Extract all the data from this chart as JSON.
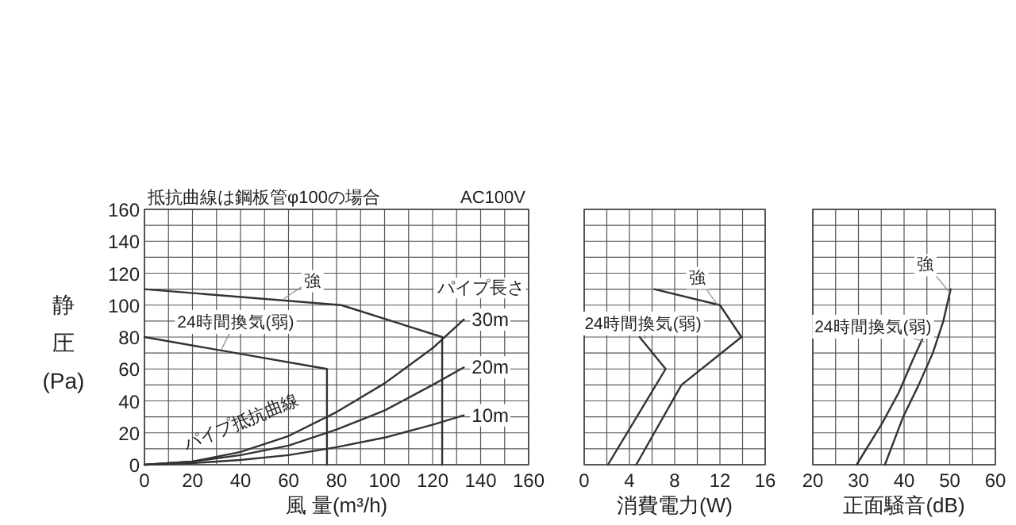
{
  "chart_data": [
    {
      "type": "line",
      "title": "抵抗曲線は鋼板管φ100の場合",
      "subtitle": "AC100V",
      "xlabel": "風 量(m³/h)",
      "ylabel": "静圧(Pa)",
      "legend_title": "パイプ長さ",
      "annotations": [
        "パイプ抵抗曲線"
      ],
      "grid": true,
      "xlim": [
        0,
        160
      ],
      "ylim": [
        0,
        160
      ],
      "xticks": [
        0,
        {
          "value": 10,
          "label": null
        },
        20,
        {
          "value": 30,
          "label": null
        },
        40,
        {
          "value": 50,
          "label": null
        },
        60,
        {
          "value": 70,
          "label": null
        },
        80,
        {
          "value": 90,
          "label": null
        },
        100,
        {
          "value": 110,
          "label": null
        },
        120,
        {
          "value": 130,
          "label": null
        },
        140,
        {
          "value": 150,
          "label": null
        },
        160
      ],
      "yticks": [
        0,
        {
          "value": 10,
          "label": null
        },
        20,
        {
          "value": 30,
          "label": null
        },
        40,
        {
          "value": 50,
          "label": null
        },
        60,
        {
          "value": 70,
          "label": null
        },
        80,
        {
          "value": 90,
          "label": null
        },
        100,
        {
          "value": 110,
          "label": null
        },
        120,
        {
          "value": 130,
          "label": null
        },
        140,
        {
          "value": 150,
          "label": null
        },
        160
      ],
      "series": [
        {
          "name": "強",
          "color": "#333333",
          "x": [
            0,
            82,
            124,
            124
          ],
          "values": [
            110,
            100,
            80,
            0
          ]
        },
        {
          "name": "24時間換気(弱)",
          "color": "#333333",
          "x": [
            0,
            76,
            76
          ],
          "values": [
            80,
            60,
            0
          ]
        },
        {
          "name": "30m",
          "color": "#333333",
          "x": [
            0,
            20,
            40,
            60,
            80,
            100,
            120,
            133
          ],
          "values": [
            0,
            2,
            8,
            18,
            33,
            51,
            73,
            91
          ]
        },
        {
          "name": "20m",
          "color": "#333333",
          "x": [
            0,
            20,
            40,
            60,
            80,
            100,
            120,
            133
          ],
          "values": [
            0,
            2,
            6,
            12,
            22,
            34,
            50,
            61
          ]
        },
        {
          "name": "10m",
          "color": "#333333",
          "x": [
            0,
            20,
            40,
            60,
            80,
            100,
            120,
            133
          ],
          "values": [
            0,
            1,
            3,
            6,
            11,
            17,
            25,
            31
          ]
        }
      ]
    },
    {
      "type": "line",
      "xlabel": "消費電力(W)",
      "grid": true,
      "tick_labels": "x",
      "xlim": [
        0,
        16
      ],
      "ylim": [
        0,
        160
      ],
      "xticks": [
        0,
        {
          "value": 2,
          "label": null
        },
        4,
        {
          "value": 6,
          "label": null
        },
        8,
        {
          "value": 10,
          "label": null
        },
        12,
        {
          "value": 14,
          "label": null
        },
        16
      ],
      "yticks": [
        0,
        {
          "value": 10,
          "label": null
        },
        20,
        {
          "value": 30,
          "label": null
        },
        40,
        {
          "value": 50,
          "label": null
        },
        60,
        {
          "value": 70,
          "label": null
        },
        80,
        {
          "value": 90,
          "label": null
        },
        100,
        {
          "value": 110,
          "label": null
        },
        120,
        {
          "value": 130,
          "label": null
        },
        140,
        {
          "value": 150,
          "label": null
        },
        160
      ],
      "series": [
        {
          "name": "強",
          "color": "#333333",
          "x": [
            6.2,
            12,
            13.9,
            8.6,
            4.6
          ],
          "values": [
            110,
            100,
            80,
            50,
            0
          ]
        },
        {
          "name": "24時間換気(弱)",
          "color": "#333333",
          "x": [
            4.9,
            7.2,
            2.1
          ],
          "values": [
            80,
            60,
            0
          ]
        }
      ]
    },
    {
      "type": "line",
      "xlabel": "正面騒音(dB)",
      "grid": true,
      "tick_labels": "x",
      "xlim": [
        20,
        60
      ],
      "ylim": [
        0,
        160
      ],
      "xticks": [
        20,
        {
          "value": 25,
          "label": null
        },
        30,
        {
          "value": 35,
          "label": null
        },
        40,
        {
          "value": 45,
          "label": null
        },
        50,
        {
          "value": 55,
          "label": null
        },
        60
      ],
      "yticks": [
        0,
        {
          "value": 10,
          "label": null
        },
        20,
        {
          "value": 30,
          "label": null
        },
        40,
        {
          "value": 50,
          "label": null
        },
        60,
        {
          "value": 70,
          "label": null
        },
        80,
        {
          "value": 90,
          "label": null
        },
        100,
        {
          "value": 110,
          "label": null
        },
        120,
        {
          "value": 130,
          "label": null
        },
        140,
        {
          "value": 150,
          "label": null
        },
        160
      ],
      "series": [
        {
          "name": "強",
          "color": "#333333",
          "x": [
            50.2,
            48.6,
            46.3,
            43.2,
            39.8,
            35.8
          ],
          "values": [
            110,
            90,
            70,
            50,
            30,
            0
          ]
        },
        {
          "name": "24時間換気(弱)",
          "color": "#333333",
          "x": [
            44.2,
            41.8,
            38.8,
            35,
            29.6
          ],
          "values": [
            80,
            65,
            45,
            25,
            0
          ]
        }
      ]
    }
  ]
}
